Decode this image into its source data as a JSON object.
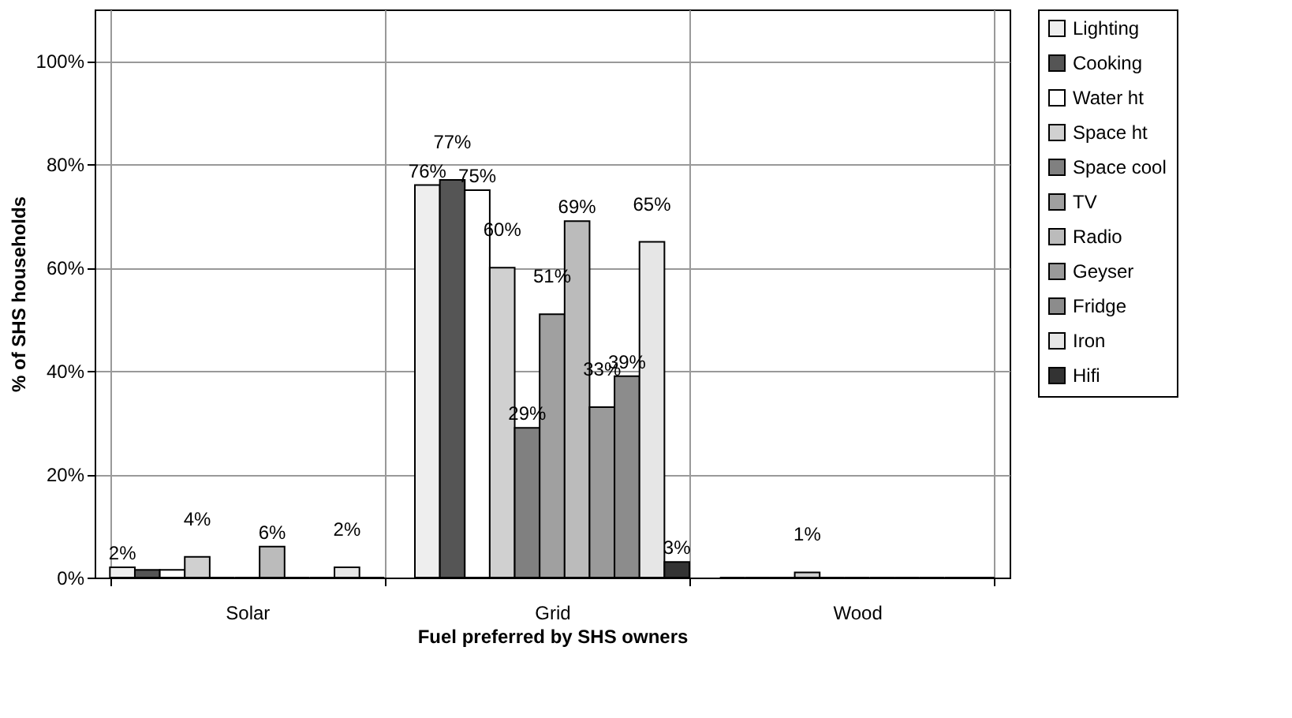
{
  "chart_data": {
    "type": "bar",
    "xlabel": "Fuel preferred by SHS owners",
    "ylabel": "% of SHS households",
    "categories": [
      "Solar",
      "Grid",
      "Wood"
    ],
    "series": [
      {
        "name": "Lighting",
        "color": "#eeeeee",
        "values": [
          2,
          76,
          0
        ],
        "value_labels": [
          "2%",
          "76%",
          null
        ]
      },
      {
        "name": "Cooking",
        "color": "#555555",
        "values": [
          1.5,
          77,
          0
        ],
        "value_labels": [
          null,
          "77%",
          null
        ]
      },
      {
        "name": "Water ht",
        "color": "#ffffff",
        "values": [
          1.5,
          75,
          0
        ],
        "value_labels": [
          null,
          "75%",
          null
        ]
      },
      {
        "name": "Space ht",
        "color": "#d0d0d0",
        "values": [
          4,
          60,
          1
        ],
        "value_labels": [
          "4%",
          "60%",
          "1%"
        ]
      },
      {
        "name": "Space cool",
        "color": "#808080",
        "values": [
          0,
          29,
          0
        ],
        "value_labels": [
          null,
          "29%",
          null
        ]
      },
      {
        "name": "TV",
        "color": "#a0a0a0",
        "values": [
          0,
          51,
          0
        ],
        "value_labels": [
          null,
          "51%",
          null
        ]
      },
      {
        "name": "Radio",
        "color": "#bbbbbb",
        "values": [
          6,
          69,
          0
        ],
        "value_labels": [
          "6%",
          "69%",
          null
        ]
      },
      {
        "name": "Geyser",
        "color": "#9a9a9a",
        "values": [
          0,
          33,
          0
        ],
        "value_labels": [
          null,
          "33%",
          null
        ]
      },
      {
        "name": "Fridge",
        "color": "#8c8c8c",
        "values": [
          0,
          39,
          0
        ],
        "value_labels": [
          null,
          "39%",
          null
        ]
      },
      {
        "name": "Iron",
        "color": "#e6e6e6",
        "values": [
          2,
          65,
          0
        ],
        "value_labels": [
          "2%",
          "65%",
          null
        ]
      },
      {
        "name": "Hifi",
        "color": "#333333",
        "values": [
          0,
          3,
          0
        ],
        "value_labels": [
          null,
          "3%",
          null
        ]
      }
    ],
    "ylim": [
      0,
      110
    ],
    "yticks": [
      {
        "value": 0,
        "label": "0%"
      },
      {
        "value": 20,
        "label": "20%"
      },
      {
        "value": 40,
        "label": "40%"
      },
      {
        "value": 60,
        "label": "60%"
      },
      {
        "value": 80,
        "label": "80%"
      },
      {
        "value": 100,
        "label": "100%"
      }
    ],
    "grid": true,
    "legend": "right"
  }
}
